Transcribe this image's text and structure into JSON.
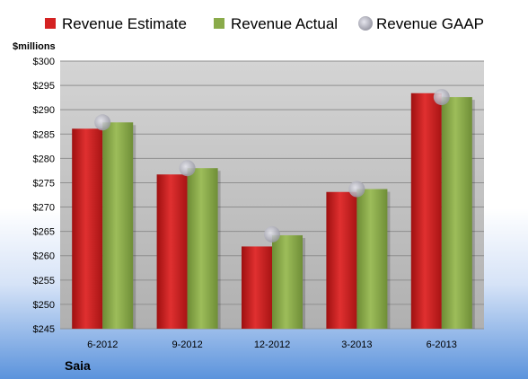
{
  "company": "Saia",
  "chart_data": {
    "type": "bar",
    "ylabel": "$millions",
    "ylim": [
      245,
      300
    ],
    "ytick_step": 5,
    "ytick_prefix": "$",
    "grid": true,
    "legend": "top",
    "categories": [
      "6-2012",
      "9-2012",
      "12-2012",
      "3-2013",
      "6-2013"
    ],
    "series": [
      {
        "name": "Revenue Estimate",
        "kind": "bar",
        "color": "#cc1f1f",
        "values": [
          286.1,
          276.7,
          261.9,
          273.1,
          293.4
        ]
      },
      {
        "name": "Revenue Actual",
        "kind": "bar",
        "color": "#8aab4a",
        "values": [
          287.4,
          278.0,
          264.2,
          273.7,
          292.6
        ]
      },
      {
        "name": "Revenue GAAP",
        "kind": "marker",
        "color": "#b8b8c4",
        "values": [
          287.4,
          278.0,
          264.4,
          273.7,
          292.6
        ]
      }
    ]
  }
}
